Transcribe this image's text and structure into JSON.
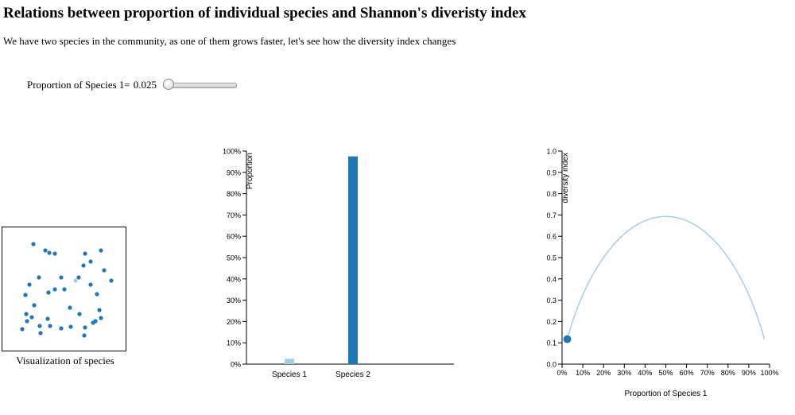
{
  "page": {
    "title": "Relations between proportion of individual species and Shannon's diveristy index",
    "subtitle": "We have two species in the community, as one of them grows faster, let's see how the diversity index changes"
  },
  "control": {
    "label": "Proportion of Species 1=",
    "value": "0.025",
    "slider_fraction": 0.025
  },
  "species_viz": {
    "caption": "Visualization of species",
    "colors": {
      "species1": "#a6cee3",
      "species2": "#1f78b4"
    },
    "total_individuals": 40,
    "species1_count": 1
  },
  "chart_data": [
    {
      "type": "bar",
      "categories": [
        "Species 1",
        "Species 2"
      ],
      "values": [
        2.5,
        97.5
      ],
      "colors": [
        "#a6cee3",
        "#1f78b4"
      ],
      "ylabel": "Proportion",
      "ylim": [
        0,
        100
      ],
      "yticks": [
        "0%",
        "10%",
        "20%",
        "30%",
        "40%",
        "50%",
        "60%",
        "70%",
        "80%",
        "90%",
        "100%"
      ]
    },
    {
      "type": "line",
      "xlabel": "Proportion of Species 1",
      "ylabel": "diversity index",
      "xlim": [
        0,
        1
      ],
      "ylim": [
        0,
        1
      ],
      "xticks": [
        "0%",
        "10%",
        "20%",
        "30%",
        "40%",
        "50%",
        "60%",
        "70%",
        "80%",
        "90%",
        "100%"
      ],
      "yticks": [
        "0.0",
        "0.1",
        "0.2",
        "0.3",
        "0.4",
        "0.5",
        "0.6",
        "0.7",
        "0.8",
        "0.9",
        "1.0"
      ],
      "curve": "shannon_index_two_species",
      "x_range": [
        0.025,
        0.975
      ],
      "line_color": "#a6cee3",
      "current_point": {
        "x": 0.025,
        "y": 0.117
      },
      "point_color": "#1f78b4"
    }
  ]
}
